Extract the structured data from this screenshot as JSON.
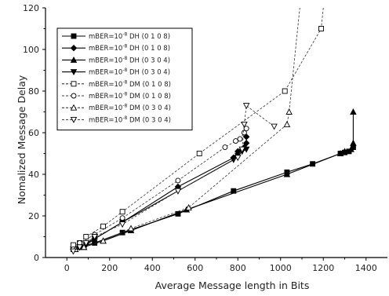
{
  "chart_data": {
    "type": "line",
    "xlabel": "Average Message length in Bits",
    "ylabel": "Nomalized Message Delay",
    "xlim": [
      -100,
      1500
    ],
    "ylim": [
      0,
      120
    ],
    "x_ticks": [
      0,
      200,
      400,
      600,
      800,
      1000,
      1200,
      1400
    ],
    "y_ticks": [
      0,
      20,
      40,
      60,
      80,
      100,
      120
    ],
    "grid": false,
    "legend_position": "top-left",
    "legend": [
      {
        "prefix": "mBER=10",
        "exp": "-8",
        "suffix": " DH (0 1 0 8)"
      },
      {
        "prefix": "mBER=10",
        "exp": "-8",
        "suffix": " DH (0 1 0 8)"
      },
      {
        "prefix": "mBER=10",
        "exp": "-8",
        "suffix": " DH (0 3 0 4)"
      },
      {
        "prefix": "mBER=10",
        "exp": "-8",
        "suffix": " DH (0 3 0 4)"
      },
      {
        "prefix": "mBER=10",
        "exp": "-8",
        "suffix": " DM (0 1 0 8)"
      },
      {
        "prefix": "mBER=10",
        "exp": "-8",
        "suffix": " DM (0 1 0 8)"
      },
      {
        "prefix": "mBER=10",
        "exp": "-8",
        "suffix": " DM (0 3 0 4)"
      },
      {
        "prefix": "mBER=10",
        "exp": "-8",
        "suffix": " DM (0 3 0 4)"
      }
    ],
    "series": [
      {
        "marker": "square-filled",
        "line": "solid",
        "x": [
          30,
          60,
          130,
          260,
          520,
          780,
          1030,
          1150,
          1280,
          1300,
          1320,
          1340
        ],
        "y": [
          4,
          5,
          7,
          12,
          21,
          32,
          41,
          45,
          50,
          50.5,
          51,
          53
        ]
      },
      {
        "marker": "diamond-filled",
        "line": "solid",
        "x": [
          30,
          60,
          90,
          130,
          260,
          520,
          780,
          800,
          830,
          840,
          840
        ],
        "y": [
          4,
          5,
          7,
          9,
          17,
          34,
          48,
          51,
          53,
          55,
          58
        ]
      },
      {
        "marker": "triangle-up-filled",
        "line": "solid",
        "x": [
          40,
          80,
          170,
          300,
          560,
          1030,
          1280,
          1300,
          1330,
          1340,
          1340
        ],
        "y": [
          4,
          5,
          8,
          13,
          23,
          40,
          50,
          51,
          52,
          55,
          70
        ]
      },
      {
        "marker": "triangle-down-filled",
        "line": "solid",
        "x": [
          30,
          60,
          90,
          130,
          260,
          520,
          780,
          800,
          820,
          840
        ],
        "y": [
          4,
          5,
          6,
          9,
          17,
          32,
          47,
          49,
          51,
          52
        ]
      },
      {
        "marker": "square-open",
        "line": "dashed",
        "x": [
          30,
          60,
          90,
          170,
          260,
          620,
          1020,
          1190,
          1200
        ],
        "y": [
          6,
          7,
          10,
          15,
          22,
          50,
          80,
          110,
          120
        ]
      },
      {
        "marker": "circle-open",
        "line": "dashed",
        "x": [
          30,
          60,
          130,
          260,
          520,
          740,
          790,
          810,
          830,
          840
        ],
        "y": [
          4,
          7,
          11,
          19,
          37,
          53,
          56,
          57,
          60,
          62
        ]
      },
      {
        "marker": "triangle-up-open",
        "line": "dashed",
        "x": [
          40,
          80,
          170,
          300,
          570,
          1030,
          1040,
          1090
        ],
        "y": [
          4,
          5,
          8,
          14,
          24,
          64,
          70,
          120
        ]
      },
      {
        "marker": "triangle-down-open",
        "line": "dashed",
        "x": [
          30,
          60,
          90,
          130,
          260,
          520,
          800,
          820,
          830,
          840,
          970
        ],
        "y": [
          3,
          5,
          7,
          10,
          16,
          32,
          48,
          52,
          64,
          73,
          63
        ]
      }
    ]
  }
}
